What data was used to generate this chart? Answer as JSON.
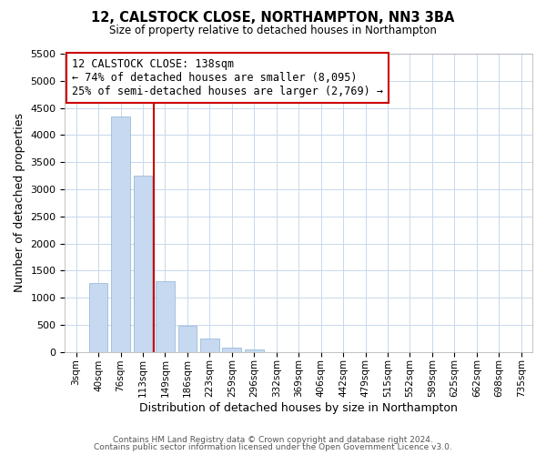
{
  "title": "12, CALSTOCK CLOSE, NORTHAMPTON, NN3 3BA",
  "subtitle": "Size of property relative to detached houses in Northampton",
  "xlabel": "Distribution of detached houses by size in Northampton",
  "ylabel": "Number of detached properties",
  "bar_labels": [
    "3sqm",
    "40sqm",
    "76sqm",
    "113sqm",
    "149sqm",
    "186sqm",
    "223sqm",
    "259sqm",
    "296sqm",
    "332sqm",
    "369sqm",
    "406sqm",
    "442sqm",
    "479sqm",
    "515sqm",
    "552sqm",
    "589sqm",
    "625sqm",
    "662sqm",
    "698sqm",
    "735sqm"
  ],
  "bar_values": [
    0,
    1270,
    4340,
    3250,
    1300,
    480,
    240,
    80,
    40,
    0,
    0,
    0,
    0,
    0,
    0,
    0,
    0,
    0,
    0,
    0,
    0
  ],
  "bar_color": "#c6d9f0",
  "bar_edge_color": "#8db3d4",
  "vline_color": "#cc0000",
  "ylim": [
    0,
    5500
  ],
  "yticks": [
    0,
    500,
    1000,
    1500,
    2000,
    2500,
    3000,
    3500,
    4000,
    4500,
    5000,
    5500
  ],
  "annotation_title": "12 CALSTOCK CLOSE: 138sqm",
  "annotation_line1": "← 74% of detached houses are smaller (8,095)",
  "annotation_line2": "25% of semi-detached houses are larger (2,769) →",
  "annotation_box_color": "#ffffff",
  "annotation_box_edge": "#cc0000",
  "footer1": "Contains HM Land Registry data © Crown copyright and database right 2024.",
  "footer2": "Contains public sector information licensed under the Open Government Licence v3.0.",
  "background_color": "#ffffff",
  "grid_color": "#c8d8ec"
}
